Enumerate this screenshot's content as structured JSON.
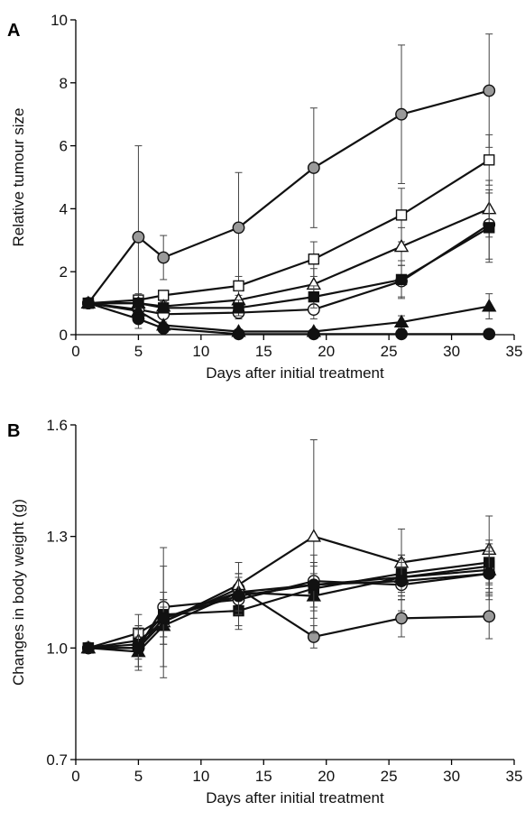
{
  "chart_data": [
    {
      "panel": "A",
      "type": "line",
      "xlabel": "Days after initial treatment",
      "ylabel": "Relative tumour size",
      "xlim": [
        0,
        35
      ],
      "ylim": [
        0,
        10
      ],
      "xticks": [
        0,
        5,
        10,
        15,
        20,
        25,
        30,
        35
      ],
      "yticks": [
        0,
        2,
        4,
        6,
        8,
        10
      ],
      "grid": false,
      "legend": "none",
      "x": [
        1,
        5,
        7,
        13,
        19,
        26,
        33
      ],
      "series": [
        {
          "marker": "circle",
          "fill": "#9a9a9a",
          "values": [
            1.0,
            3.1,
            2.45,
            3.4,
            5.3,
            7.0,
            7.75
          ],
          "err": [
            0,
            2.9,
            0.7,
            1.75,
            1.9,
            2.2,
            1.8
          ]
        },
        {
          "marker": "square",
          "fill": "#ffffff",
          "values": [
            1.0,
            1.1,
            1.25,
            1.55,
            2.4,
            3.8,
            5.55
          ],
          "err": [
            0,
            0.2,
            0.15,
            0.3,
            0.55,
            0.85,
            0.8
          ]
        },
        {
          "marker": "triangle",
          "fill": "#ffffff",
          "values": [
            1.0,
            1.0,
            0.9,
            1.1,
            1.6,
            2.8,
            4.0
          ],
          "err": [
            0,
            0.15,
            0.15,
            0.3,
            0.5,
            0.6,
            0.9
          ]
        },
        {
          "marker": "circle",
          "fill": "#ffffff",
          "values": [
            1.0,
            0.8,
            0.65,
            0.7,
            0.8,
            1.7,
            3.5
          ],
          "err": [
            0,
            0.15,
            0.1,
            0.2,
            0.3,
            0.5,
            1.1
          ]
        },
        {
          "marker": "square",
          "fill": "#111111",
          "values": [
            1.0,
            1.0,
            0.85,
            0.85,
            1.2,
            1.75,
            3.4
          ],
          "err": [
            0,
            0.15,
            0.15,
            0.25,
            0.35,
            0.6,
            1.1
          ]
        },
        {
          "marker": "triangle",
          "fill": "#111111",
          "values": [
            1.0,
            0.75,
            0.3,
            0.1,
            0.1,
            0.4,
            0.9
          ],
          "err": [
            0,
            0.1,
            0.1,
            0.05,
            0.05,
            0.2,
            0.4
          ]
        },
        {
          "marker": "circle",
          "fill": "#111111",
          "values": [
            1.0,
            0.5,
            0.2,
            0.02,
            0.02,
            0.02,
            0.02
          ],
          "err": [
            0,
            0.1,
            0.05,
            0,
            0,
            0,
            0
          ]
        }
      ]
    },
    {
      "panel": "B",
      "type": "line",
      "xlabel": "Days after initial treatment",
      "ylabel": "Changes in body weight (g)",
      "xlim": [
        0,
        35
      ],
      "ylim": [
        0.7,
        1.6
      ],
      "xticks": [
        0,
        5,
        10,
        15,
        20,
        25,
        30,
        35
      ],
      "yticks": [
        0.7,
        1.0,
        1.3,
        1.6
      ],
      "grid": false,
      "legend": "none",
      "x": [
        1,
        5,
        7,
        13,
        19,
        26,
        33
      ],
      "series": [
        {
          "marker": "circle",
          "fill": "#9a9a9a",
          "values": [
            1.0,
            1.0,
            1.07,
            1.16,
            1.03,
            1.08,
            1.085
          ],
          "err": [
            0,
            0.05,
            0.15,
            0.07,
            0.03,
            0.05,
            0.06
          ]
        },
        {
          "marker": "square",
          "fill": "#ffffff",
          "values": [
            1.0,
            1.04,
            1.08,
            1.15,
            1.17,
            1.19,
            1.22
          ],
          "err": [
            0,
            0.05,
            0.05,
            0.05,
            0.06,
            0.05,
            0.06
          ]
        },
        {
          "marker": "triangle",
          "fill": "#ffffff",
          "values": [
            1.0,
            1.02,
            1.07,
            1.17,
            1.3,
            1.23,
            1.265
          ],
          "err": [
            0,
            0.04,
            0.06,
            0.06,
            0.26,
            0.09,
            0.09
          ]
        },
        {
          "marker": "circle",
          "fill": "#ffffff",
          "values": [
            1.0,
            1.0,
            1.11,
            1.13,
            1.18,
            1.17,
            1.2
          ],
          "err": [
            0,
            0.06,
            0.16,
            0.07,
            0.07,
            0.07,
            0.07
          ]
        },
        {
          "marker": "square",
          "fill": "#111111",
          "values": [
            1.0,
            1.01,
            1.09,
            1.1,
            1.16,
            1.2,
            1.23
          ],
          "err": [
            0,
            0.04,
            0.06,
            0.05,
            0.06,
            0.05,
            0.06
          ]
        },
        {
          "marker": "triangle",
          "fill": "#111111",
          "values": [
            1.0,
            0.99,
            1.06,
            1.15,
            1.14,
            1.19,
            1.21
          ],
          "err": [
            0,
            0.04,
            0.05,
            0.05,
            0.06,
            0.06,
            0.06
          ]
        },
        {
          "marker": "circle",
          "fill": "#111111",
          "values": [
            1.0,
            1.0,
            1.08,
            1.14,
            1.17,
            1.18,
            1.2
          ],
          "err": [
            0,
            0.05,
            0.05,
            0.05,
            0.06,
            0.05,
            0.06
          ]
        }
      ]
    }
  ]
}
